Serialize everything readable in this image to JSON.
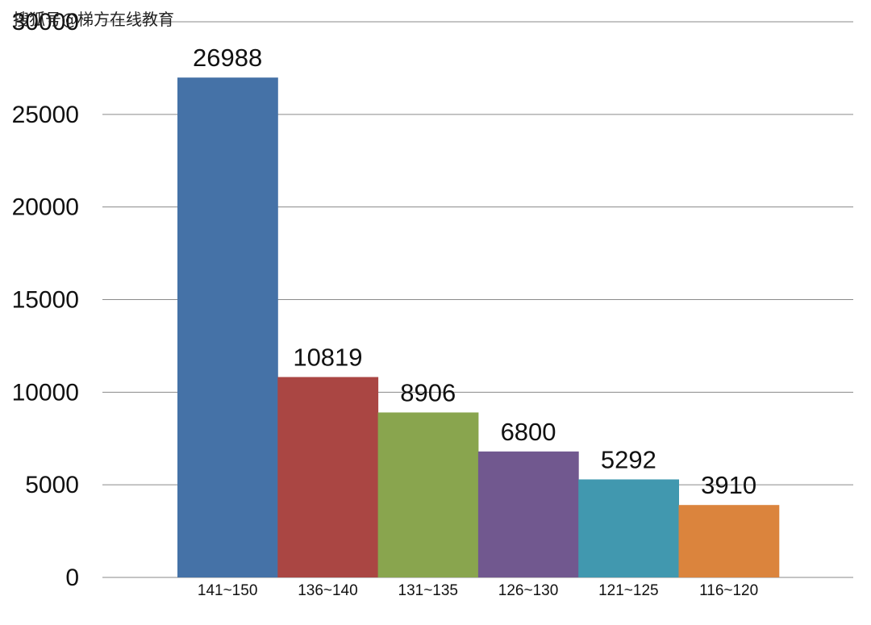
{
  "watermark": "搜狐号@梯方在线教育",
  "chart_data": {
    "type": "bar",
    "categories": [
      "141~150",
      "136~140",
      "131~135",
      "126~130",
      "121~125",
      "116~120"
    ],
    "values": [
      26988,
      10819,
      8906,
      6800,
      5292,
      3910
    ],
    "data_labels": [
      "26988",
      "10819",
      "8906",
      "6800",
      "5292",
      "3910"
    ],
    "colors": [
      "#4572a7",
      "#aa4643",
      "#89a54e",
      "#71588f",
      "#4198af",
      "#db843d"
    ],
    "y_ticks": [
      "0",
      "5000",
      "10000",
      "15000",
      "20000",
      "25000",
      "30000"
    ],
    "title": "",
    "xlabel": "",
    "ylabel": "",
    "ylim": [
      0,
      30000
    ],
    "grid": true,
    "legend": "none"
  }
}
